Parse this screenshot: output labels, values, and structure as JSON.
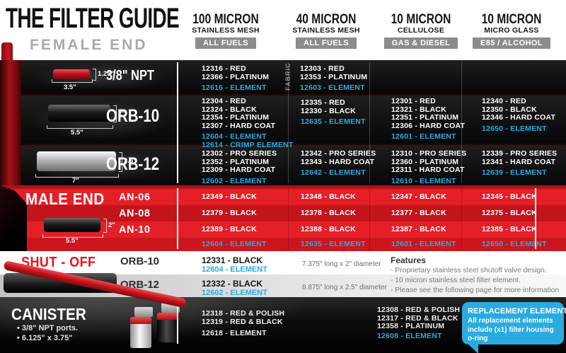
{
  "colors": {
    "element_blue": "#29abe2",
    "brand_red": "#c4161d"
  },
  "title": "THE FILTER GUIDE",
  "columns": [
    {
      "micron": "100 MICRON",
      "media": "STAINLESS MESH",
      "fuels": "ALL FUELS"
    },
    {
      "micron": "40 MICRON",
      "media": "STAINLESS MESH",
      "fuels": "ALL FUELS"
    },
    {
      "micron": "10 MICRON",
      "media": "CELLULOSE",
      "fuels": "GAS & DIESEL"
    },
    {
      "micron": "10 MICRON",
      "media": "MICRO GLASS",
      "fuels": "E85 / ALCOHOL"
    }
  ],
  "female_end": {
    "label": "FEMALE END",
    "rows": [
      {
        "name": "3/8\" NPT",
        "dims": {
          "height": "1.25\"",
          "length": "3.5\""
        },
        "cells": [
          {
            "parts": [
              "12316 - RED",
              "12366 - PLATINUM"
            ],
            "elements": [
              "12616 - ELEMENT"
            ]
          },
          {
            "tag": "FABRIC",
            "parts": [
              "12303 - RED",
              "12353 - PLATINUM"
            ],
            "elements": [
              "12603 - ELEMENT"
            ]
          },
          {
            "parts": [],
            "elements": []
          },
          {
            "parts": [],
            "elements": []
          }
        ]
      },
      {
        "name": "ORB-10",
        "dims": {
          "height": "2\"",
          "length": "5.5\""
        },
        "cells": [
          {
            "parts": [
              "12304 - RED",
              "12324 - BLACK",
              "12354 - PLATINUM",
              "12307 - HARD COAT"
            ],
            "elements": [
              "12604 - ELEMENT",
              "12614 - CRIMP ELEMENT"
            ]
          },
          {
            "parts": [
              "12335 - RED",
              "12330 - BLACK"
            ],
            "elements": [
              "12635 - ELEMENT"
            ]
          },
          {
            "parts": [
              "12301 - RED",
              "12321 - BLACK",
              "12351 - PLATINUM",
              "12306 - HARD COAT"
            ],
            "elements": [
              "12601 - ELEMENT"
            ]
          },
          {
            "parts": [
              "12340 - RED",
              "12350 - BLACK",
              "12346 - HARD COAT"
            ],
            "elements": [
              "12650 - ELEMENT"
            ]
          }
        ]
      },
      {
        "name": "ORB-12",
        "dims": {
          "height": "2.5\"",
          "length": "7\""
        },
        "cells": [
          {
            "parts": [
              "12302 - PRO SERIES",
              "12352 - PLATINUM",
              "12309 - HARD COAT"
            ],
            "elements": [
              "12602 - ELEMENT"
            ]
          },
          {
            "parts": [
              "12342 - PRO SERIES",
              "12343 - HARD COAT"
            ],
            "elements": [
              "12642 - ELEMENT"
            ]
          },
          {
            "parts": [
              "12310 - PRO SERIES",
              "12360 - PLATINUM",
              "12311 - HARD COAT"
            ],
            "elements": [
              "12610 - ELEMENT"
            ]
          },
          {
            "parts": [
              "12339 - PRO SERIES",
              "12341 - HARD COAT"
            ],
            "elements": [
              "12639 - ELEMENT"
            ]
          }
        ]
      }
    ]
  },
  "male_end": {
    "label": "MALE END",
    "dims": {
      "height": "2\"",
      "length": "5.5\""
    },
    "rows": [
      {
        "name": "AN-06",
        "cells": [
          "12349 - BLACK",
          "12348 - BLACK",
          "12347 - BLACK",
          "12345 - BLACK"
        ]
      },
      {
        "name": "AN-08",
        "cells": [
          "12379 - BLACK",
          "12378 - BLACK",
          "12377 - BLACK",
          "12375 - BLACK"
        ]
      },
      {
        "name": "AN-10",
        "cells": [
          "12389 - BLACK",
          "12388 - BLACK",
          "12387 - BLACK",
          "12385 - BLACK"
        ]
      }
    ],
    "elements": [
      "12604 - ELEMENT",
      "12635 - ELEMENT",
      "12601 - ELEMENT",
      "12650 - ELEMENT"
    ]
  },
  "shut_off": {
    "label": "SHUT - OFF",
    "rows": [
      {
        "name": "ORB-10",
        "part": "12331 - BLACK",
        "element": "12604 - ELEMENT",
        "size": "7.375\" long x 2\" diameter"
      },
      {
        "name": "ORB-12",
        "part": "12332 - BLACK",
        "element": "12602 - ELEMENT",
        "size": "8.875\" long x 2.5\" diameter"
      }
    ],
    "features": {
      "title": "Features",
      "items": [
        "- Proprietary stainless steel shutoff valve design.",
        "- 10 micron stainless steel filter element.",
        "- Please see the following page for more information"
      ]
    }
  },
  "canister": {
    "label": "CANISTER",
    "bullets": [
      "• 3/8\" NPT ports.",
      "• 6.125\" x 3.75\""
    ],
    "cells": [
      {
        "parts": [
          "12318 - RED & POLISH",
          "12319 - RED & BLACK"
        ],
        "elements": [
          "12618 - ELEMENT"
        ]
      },
      {
        "parts": [
          "12308 - RED & POLISH",
          "12317 - RED & BLACK",
          "12358 - PLATINUM"
        ],
        "elements": [
          "12608 - ELEMENT"
        ]
      }
    ],
    "callout": {
      "title": "REPLACEMENT ELEMENTS",
      "body": "All replacement elements include (x1) filter housing o-ring"
    }
  }
}
